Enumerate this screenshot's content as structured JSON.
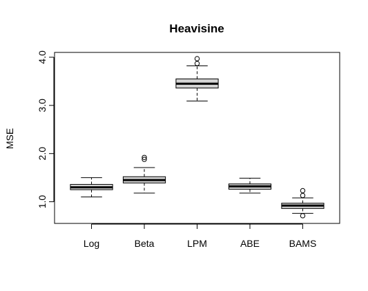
{
  "chart_data": {
    "type": "boxplot",
    "title": "Heavisine",
    "xlabel": "",
    "ylabel": "MSE",
    "ylim": [
      0.55,
      4.1
    ],
    "y_ticks": [
      "1.0",
      "2.0",
      "3.0",
      "4.0"
    ],
    "y_tick_values": [
      1.0,
      2.0,
      3.0,
      4.0
    ],
    "grid": false,
    "box_fill": "#d3d3d3",
    "categories": [
      "Log",
      "Beta",
      "LPM",
      "ABE",
      "BAMS"
    ],
    "boxes": [
      {
        "name": "Log",
        "whisker_low": 1.1,
        "q1": 1.25,
        "median": 1.3,
        "q3": 1.36,
        "whisker_high": 1.5,
        "outliers": []
      },
      {
        "name": "Beta",
        "whisker_low": 1.18,
        "q1": 1.39,
        "median": 1.45,
        "q3": 1.52,
        "whisker_high": 1.71,
        "outliers": [
          1.88,
          1.92
        ]
      },
      {
        "name": "LPM",
        "whisker_low": 3.09,
        "q1": 3.36,
        "median": 3.45,
        "q3": 3.55,
        "whisker_high": 3.82,
        "outliers": [
          3.87,
          3.97
        ]
      },
      {
        "name": "ABE",
        "whisker_low": 1.18,
        "q1": 1.26,
        "median": 1.32,
        "q3": 1.37,
        "whisker_high": 1.49,
        "outliers": []
      },
      {
        "name": "BAMS",
        "whisker_low": 0.76,
        "q1": 0.86,
        "median": 0.92,
        "q3": 0.97,
        "whisker_high": 1.08,
        "outliers": [
          0.71,
          1.13,
          1.23
        ]
      }
    ]
  }
}
